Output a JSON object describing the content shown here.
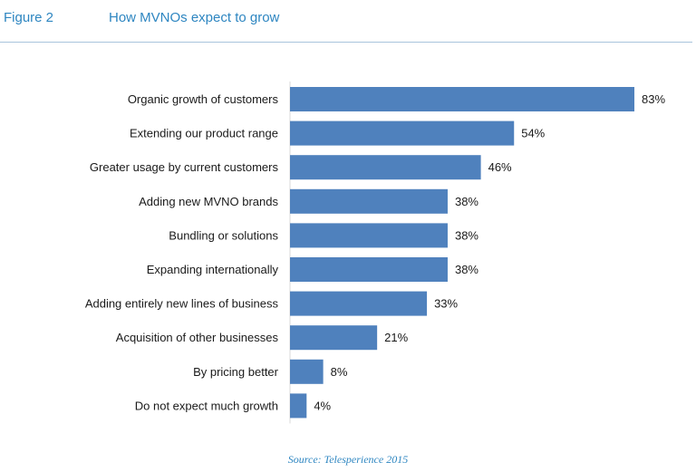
{
  "header": {
    "figure_label": "Figure 2",
    "title": "How MVNOs expect to grow"
  },
  "source": "Source: Telesperience 2015",
  "colors": {
    "bar": "#4f81bd",
    "header_text": "#2e86c1",
    "label_text": "#1a1a1a"
  },
  "chart_data": {
    "type": "bar",
    "orientation": "horizontal",
    "title": "How MVNOs expect to grow",
    "categories": [
      "Organic growth of customers",
      "Extending our product range",
      "Greater usage by current customers",
      "Adding new MVNO brands",
      "Bundling or solutions",
      "Expanding internationally",
      "Adding entirely new lines of business",
      "Acquisition of other businesses",
      "By pricing better",
      "Do not expect much growth"
    ],
    "values": [
      83,
      54,
      46,
      38,
      38,
      38,
      33,
      21,
      8,
      4
    ],
    "value_labels": [
      "83%",
      "54%",
      "46%",
      "38%",
      "38%",
      "38%",
      "33%",
      "21%",
      "8%",
      "4%"
    ],
    "xlim": [
      0,
      83
    ],
    "xlabel": "",
    "ylabel": "",
    "grid": false,
    "legend": "none"
  }
}
